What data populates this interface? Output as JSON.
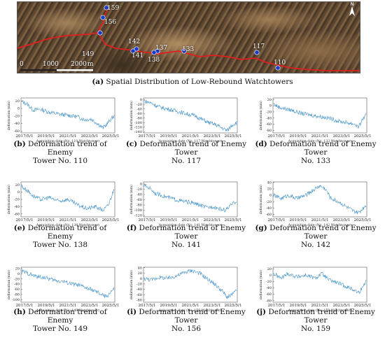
{
  "map": {
    "caption_letter": "(a)",
    "caption_text": "Spatial Distribution of Low-Rebound Watchtowers",
    "north_label": "N",
    "scale": [
      "0",
      "1000",
      "2000",
      "m"
    ],
    "route_color": "#e01e1e",
    "marker_color": "#1a3cc8",
    "towers": [
      "159",
      "156",
      "149",
      "142",
      "141",
      "137",
      "138",
      "133",
      "117",
      "110"
    ]
  },
  "x_ticks": [
    "2017/5/1",
    "2019/5/1",
    "2021/5/1",
    "2023/5/1",
    "2025/5/1"
  ],
  "y_label": "deformation (mm)",
  "line_color": "#3d8fc7",
  "panels": [
    {
      "letter": "(b)",
      "cap1": "Deformation trend of Enemy",
      "cap2": "Tower No. 110",
      "xlabel": "Acquisition date (No. 110 Watchtower)",
      "yticks": [
        "20",
        "0",
        "-20",
        "-40",
        "-60"
      ],
      "ylim": [
        -65,
        28
      ],
      "anchors": [
        [
          0,
          18
        ],
        [
          0.06,
          12
        ],
        [
          0.12,
          -4
        ],
        [
          0.2,
          -2
        ],
        [
          0.3,
          -10
        ],
        [
          0.4,
          -15
        ],
        [
          0.5,
          -18
        ],
        [
          0.6,
          -22
        ],
        [
          0.68,
          -30
        ],
        [
          0.75,
          -28
        ],
        [
          0.82,
          -40
        ],
        [
          0.88,
          -52
        ],
        [
          0.92,
          -42
        ],
        [
          0.96,
          -30
        ],
        [
          1,
          -20
        ]
      ]
    },
    {
      "letter": "(c)",
      "cap1": "Deformation trend of Enemy Tower",
      "cap2": "No. 117",
      "xlabel": "Acquisition date (No. 117 Watchtower)",
      "yticks": [
        "0",
        "-20",
        "-40",
        "-60",
        "-80",
        "-100",
        "-120",
        "-140"
      ],
      "ylim": [
        -145,
        8
      ],
      "anchors": [
        [
          0,
          -5
        ],
        [
          0.08,
          -15
        ],
        [
          0.15,
          -30
        ],
        [
          0.25,
          -40
        ],
        [
          0.35,
          -50
        ],
        [
          0.45,
          -60
        ],
        [
          0.55,
          -70
        ],
        [
          0.62,
          -85
        ],
        [
          0.7,
          -100
        ],
        [
          0.78,
          -110
        ],
        [
          0.85,
          -125
        ],
        [
          0.9,
          -135
        ],
        [
          0.95,
          -110
        ],
        [
          1,
          -100
        ]
      ]
    },
    {
      "letter": "(d)",
      "cap1": "Deformation trend of Enemy Tower",
      "cap2": "No. 133",
      "xlabel": "Acquisition date (No. 133 Watchtower)",
      "yticks": [
        "20",
        "0",
        "-20",
        "-40",
        "-60",
        "-80"
      ],
      "ylim": [
        -88,
        25
      ],
      "anchors": [
        [
          0,
          5
        ],
        [
          0.06,
          -5
        ],
        [
          0.12,
          -10
        ],
        [
          0.2,
          -15
        ],
        [
          0.3,
          -25
        ],
        [
          0.4,
          -30
        ],
        [
          0.5,
          -35
        ],
        [
          0.6,
          -40
        ],
        [
          0.7,
          -50
        ],
        [
          0.8,
          -55
        ],
        [
          0.88,
          -60
        ],
        [
          0.92,
          -70
        ],
        [
          0.96,
          -45
        ],
        [
          1,
          -30
        ]
      ]
    },
    {
      "letter": "(e)",
      "cap1": "Deformation trend of Enemy",
      "cap2": "Tower No. 138",
      "xlabel": "Acquisition date (No. 138 Watchtower)",
      "yticks": [
        "20",
        "0",
        "-20",
        "-40",
        "-60"
      ],
      "ylim": [
        -68,
        28
      ],
      "anchors": [
        [
          0,
          15
        ],
        [
          0.06,
          5
        ],
        [
          0.12,
          -10
        ],
        [
          0.2,
          -20
        ],
        [
          0.3,
          -15
        ],
        [
          0.4,
          -25
        ],
        [
          0.5,
          -20
        ],
        [
          0.6,
          -35
        ],
        [
          0.7,
          -45
        ],
        [
          0.8,
          -40
        ],
        [
          0.88,
          -50
        ],
        [
          0.94,
          -35
        ],
        [
          1,
          10
        ]
      ]
    },
    {
      "letter": "(f)",
      "cap1": "Deformation trend of Enemy Tower",
      "cap2": "No. 141",
      "xlabel": "Acquisition date (No. 141 Watchtower)",
      "yticks": [
        "0",
        "-20",
        "-40",
        "-60",
        "-80",
        "-100",
        "-120"
      ],
      "ylim": [
        -125,
        8
      ],
      "anchors": [
        [
          0,
          -5
        ],
        [
          0.06,
          -15
        ],
        [
          0.12,
          -35
        ],
        [
          0.2,
          -45
        ],
        [
          0.3,
          -55
        ],
        [
          0.4,
          -65
        ],
        [
          0.5,
          -70
        ],
        [
          0.6,
          -80
        ],
        [
          0.68,
          -90
        ],
        [
          0.75,
          -85
        ],
        [
          0.82,
          -95
        ],
        [
          0.88,
          -100
        ],
        [
          0.94,
          -80
        ],
        [
          1,
          -65
        ]
      ]
    },
    {
      "letter": "(g)",
      "cap1": "Deformation trend of Enemy Tower",
      "cap2": "No. 142",
      "xlabel": "Acquisition date (No. 142 Watchtower)",
      "yticks": [
        "40",
        "20",
        "0",
        "-20",
        "-40",
        "-60"
      ],
      "ylim": [
        -68,
        42
      ],
      "anchors": [
        [
          0,
          0
        ],
        [
          0.08,
          -10
        ],
        [
          0.16,
          0
        ],
        [
          0.25,
          -10
        ],
        [
          0.35,
          0
        ],
        [
          0.42,
          15
        ],
        [
          0.5,
          30
        ],
        [
          0.56,
          20
        ],
        [
          0.62,
          -10
        ],
        [
          0.7,
          -20
        ],
        [
          0.78,
          -35
        ],
        [
          0.86,
          -50
        ],
        [
          0.92,
          -55
        ],
        [
          1,
          -30
        ]
      ]
    },
    {
      "letter": "(h)",
      "cap1": "Deformation trend of Enemy",
      "cap2": "Tower No. 149",
      "xlabel": "Acquisition date (No. 149 Watchtower)",
      "yticks": [
        "20",
        "0",
        "-20",
        "-40",
        "-60",
        "-80",
        "-100"
      ],
      "ylim": [
        -110,
        25
      ],
      "anchors": [
        [
          0,
          10
        ],
        [
          0.08,
          0
        ],
        [
          0.15,
          -10
        ],
        [
          0.25,
          -15
        ],
        [
          0.35,
          -25
        ],
        [
          0.45,
          -30
        ],
        [
          0.55,
          -40
        ],
        [
          0.62,
          -45
        ],
        [
          0.7,
          -55
        ],
        [
          0.78,
          -65
        ],
        [
          0.86,
          -80
        ],
        [
          0.92,
          -90
        ],
        [
          0.96,
          -70
        ],
        [
          1,
          -60
        ]
      ]
    },
    {
      "letter": "(i)",
      "cap1": "Deformation trend of Enemy Tower",
      "cap2": "No. 156",
      "xlabel": "Acquisition date (No. 156 Watchtower)",
      "yticks": [
        "40",
        "20",
        "0",
        "-20",
        "-40",
        "-60",
        "-80"
      ],
      "ylim": [
        -88,
        42
      ],
      "anchors": [
        [
          0,
          0
        ],
        [
          0.08,
          -5
        ],
        [
          0.16,
          5
        ],
        [
          0.25,
          0
        ],
        [
          0.35,
          10
        ],
        [
          0.45,
          25
        ],
        [
          0.52,
          30
        ],
        [
          0.6,
          20
        ],
        [
          0.68,
          0
        ],
        [
          0.76,
          -20
        ],
        [
          0.84,
          -45
        ],
        [
          0.9,
          -70
        ],
        [
          0.95,
          -60
        ],
        [
          1,
          -45
        ]
      ]
    },
    {
      "letter": "(j)",
      "cap1": "Deformation trend of Enemy Tower",
      "cap2": "No. 159",
      "xlabel": "Acquisition date (No. 159 Watchtower)",
      "yticks": [
        "20",
        "0",
        "-20",
        "-40",
        "-60",
        "-80"
      ],
      "ylim": [
        -85,
        25
      ],
      "anchors": [
        [
          0,
          5
        ],
        [
          0.08,
          -10
        ],
        [
          0.15,
          5
        ],
        [
          0.25,
          -5
        ],
        [
          0.35,
          0
        ],
        [
          0.45,
          -10
        ],
        [
          0.52,
          5
        ],
        [
          0.6,
          -15
        ],
        [
          0.7,
          -25
        ],
        [
          0.78,
          -35
        ],
        [
          0.86,
          -45
        ],
        [
          0.92,
          -55
        ],
        [
          0.96,
          -40
        ],
        [
          1,
          -15
        ]
      ]
    }
  ]
}
